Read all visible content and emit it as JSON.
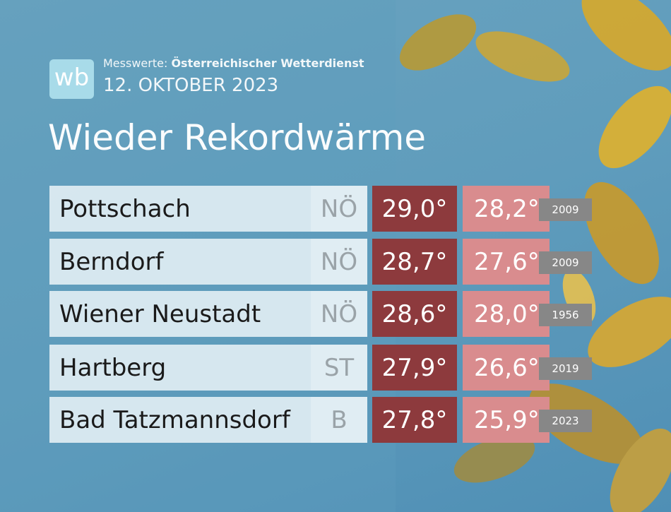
{
  "header": {
    "logo": "wb",
    "source_label": "Messwerte:",
    "source": "Österreichischer Wetterdienst",
    "date": "12. OKTOBER 2023",
    "title": "Wieder Rekordwärme"
  },
  "table": {
    "rows": [
      [
        "Pottschach",
        "NÖ",
        "29,0°",
        "28,2°",
        "2009"
      ],
      [
        "Berndorf",
        "NÖ",
        "28,7°",
        "27,6°",
        "2009"
      ],
      [
        "Wiener Neustadt",
        "NÖ",
        "28,6°",
        "28,0°",
        "1956"
      ],
      [
        "Hartberg",
        "ST",
        "27,9°",
        "26,6°",
        "2019"
      ],
      [
        "Bad Tatzmannsdorf",
        "B",
        "27,8°",
        "25,9°",
        "2023"
      ]
    ]
  }
}
